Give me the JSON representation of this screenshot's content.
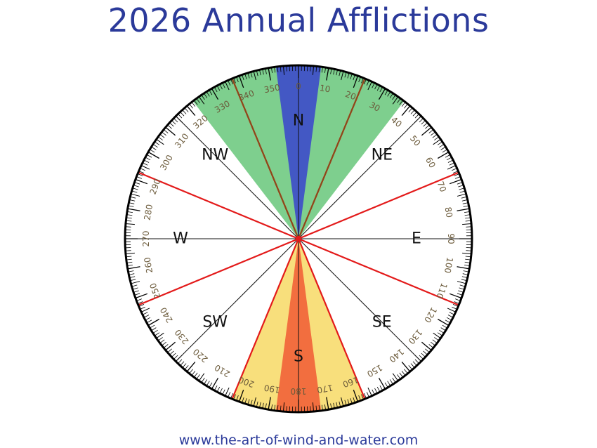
{
  "title": "2026 Annual Afflictions",
  "footer": "www.the-art-of-wind-and-water.com",
  "directions": [
    {
      "label": "N",
      "angle": 0
    },
    {
      "label": "NE",
      "angle": 45
    },
    {
      "label": "E",
      "angle": 90
    },
    {
      "label": "SE",
      "angle": 135
    },
    {
      "label": "S",
      "angle": 180
    },
    {
      "label": "SW",
      "angle": 225
    },
    {
      "label": "W",
      "angle": 270
    },
    {
      "label": "NW",
      "angle": 315
    }
  ],
  "degree_labels": [
    "0",
    "10",
    "20",
    "30",
    "40",
    "50",
    "60",
    "70",
    "80",
    "90",
    "100",
    "110",
    "120",
    "130",
    "140",
    "150",
    "160",
    "170",
    "180",
    "190",
    "200",
    "210",
    "220",
    "230",
    "240",
    "250",
    "260",
    "270",
    "280",
    "290",
    "300",
    "310",
    "320",
    "330",
    "340",
    "350"
  ],
  "sectors": [
    {
      "name": "green-affliction-sector",
      "from": 322.5,
      "to": 37.5,
      "color": "#7ecf8e"
    },
    {
      "name": "blue-affliction-sector",
      "from": 352.5,
      "to": 7.5,
      "color": "#4358c4"
    },
    {
      "name": "yellow-affliction-sector",
      "from": 157.5,
      "to": 202.5,
      "color": "#f8df7c"
    },
    {
      "name": "orange-affliction-sector",
      "from": 172.5,
      "to": 187.5,
      "color": "#f26e3f"
    }
  ],
  "brown_lines": [
    337.5,
    22.5
  ],
  "red_lines": [
    67.5,
    112.5,
    157.5,
    202.5
  ],
  "colors": {
    "title": "#2b3a9a",
    "red_line": "#e31a1a",
    "brown_line": "#8a4a1a",
    "rim": "#000000"
  }
}
